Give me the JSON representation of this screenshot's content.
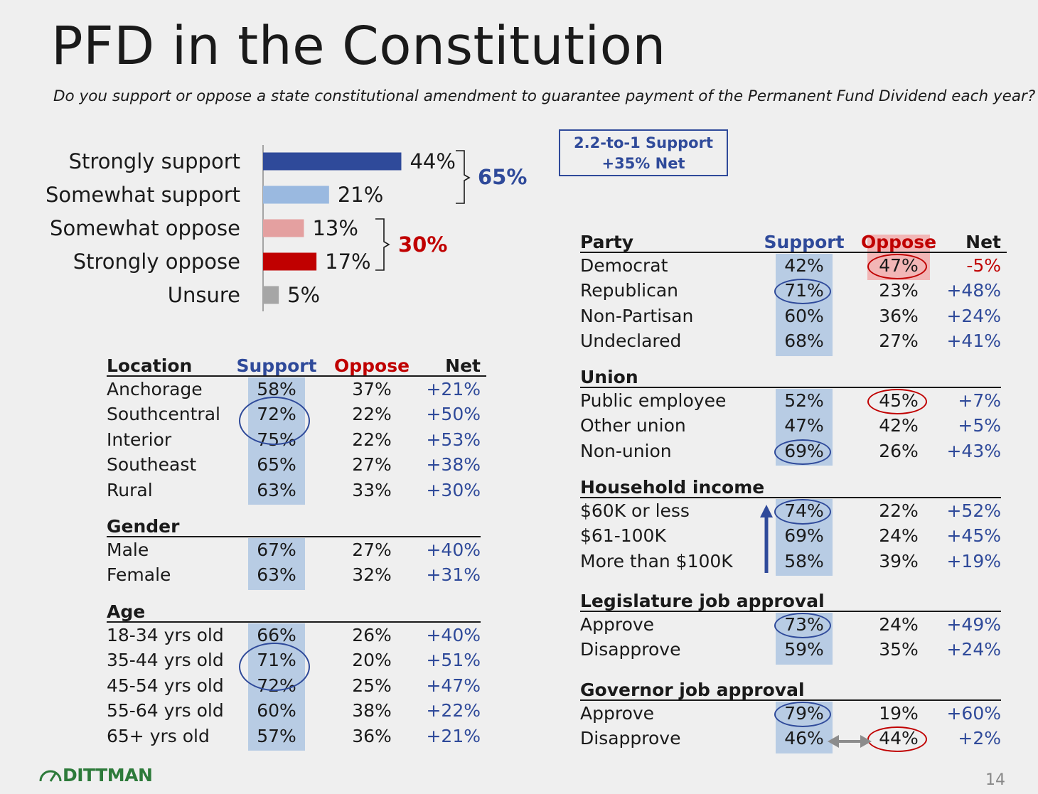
{
  "title": "PFD in the Constitution",
  "subtitle": "Do you support or oppose a state constitutional amendment to guarantee payment of the Permanent Fund Dividend each year?",
  "colors": {
    "strong_support": "#2f4a9a",
    "somewhat_support": "#9ab9e0",
    "somewhat_oppose": "#e4a0a0",
    "strong_oppose": "#c00000",
    "unsure": "#a6a6a6",
    "support_shade": "#b8cce4",
    "oppose_shade": "#f2b6b6"
  },
  "chart_data": {
    "type": "bar",
    "orientation": "horizontal",
    "categories": [
      "Strongly support",
      "Somewhat support",
      "Somewhat oppose",
      "Strongly oppose",
      "Unsure"
    ],
    "values": [
      44,
      21,
      13,
      17,
      5
    ],
    "value_labels": [
      "44%",
      "21%",
      "13%",
      "17%",
      "5%"
    ],
    "xlim": [
      0,
      100
    ],
    "grid": false,
    "support_total": "65%",
    "oppose_total": "30%"
  },
  "summary_box": {
    "line1": "2.2-to-1 Support",
    "line2": "+35% Net"
  },
  "table_headers": {
    "support": "Support",
    "oppose": "Oppose",
    "net": "Net"
  },
  "left_sections": [
    {
      "title": "Location",
      "rows": [
        {
          "label": "Anchorage",
          "support": "58%",
          "oppose": "37%",
          "net": "+21%"
        },
        {
          "label": "Southcentral",
          "support": "72%",
          "oppose": "22%",
          "net": "+50%"
        },
        {
          "label": "Interior",
          "support": "75%",
          "oppose": "22%",
          "net": "+53%"
        },
        {
          "label": "Southeast",
          "support": "65%",
          "oppose": "27%",
          "net": "+38%"
        },
        {
          "label": "Rural",
          "support": "63%",
          "oppose": "33%",
          "net": "+30%"
        }
      ]
    },
    {
      "title": "Gender",
      "rows": [
        {
          "label": "Male",
          "support": "67%",
          "oppose": "27%",
          "net": "+40%"
        },
        {
          "label": "Female",
          "support": "63%",
          "oppose": "32%",
          "net": "+31%"
        }
      ]
    },
    {
      "title": "Age",
      "rows": [
        {
          "label": "18-34 yrs old",
          "support": "66%",
          "oppose": "26%",
          "net": "+40%"
        },
        {
          "label": "35-44 yrs old",
          "support": "71%",
          "oppose": "20%",
          "net": "+51%"
        },
        {
          "label": "45-54 yrs old",
          "support": "72%",
          "oppose": "25%",
          "net": "+47%"
        },
        {
          "label": "55-64 yrs old",
          "support": "60%",
          "oppose": "38%",
          "net": "+22%"
        },
        {
          "label": "65+ yrs old",
          "support": "57%",
          "oppose": "36%",
          "net": "+21%"
        }
      ]
    }
  ],
  "right_sections": [
    {
      "title": "Party",
      "rows": [
        {
          "label": "Democrat",
          "support": "42%",
          "oppose": "47%",
          "net": "-5%"
        },
        {
          "label": "Republican",
          "support": "71%",
          "oppose": "23%",
          "net": "+48%"
        },
        {
          "label": "Non-Partisan",
          "support": "60%",
          "oppose": "36%",
          "net": "+24%"
        },
        {
          "label": "Undeclared",
          "support": "68%",
          "oppose": "27%",
          "net": "+41%"
        }
      ]
    },
    {
      "title": "Union",
      "rows": [
        {
          "label": "Public employee",
          "support": "52%",
          "oppose": "45%",
          "net": "+7%"
        },
        {
          "label": "Other union",
          "support": "47%",
          "oppose": "42%",
          "net": "+5%"
        },
        {
          "label": "Non-union",
          "support": "69%",
          "oppose": "26%",
          "net": "+43%"
        }
      ]
    },
    {
      "title": "Household income",
      "rows": [
        {
          "label": "$60K or less",
          "support": "74%",
          "oppose": "22%",
          "net": "+52%"
        },
        {
          "label": "$61-100K",
          "support": "69%",
          "oppose": "24%",
          "net": "+45%"
        },
        {
          "label": "More than $100K",
          "support": "58%",
          "oppose": "39%",
          "net": "+19%"
        }
      ]
    },
    {
      "title": "Legislature job approval",
      "rows": [
        {
          "label": "Approve",
          "support": "73%",
          "oppose": "24%",
          "net": "+49%"
        },
        {
          "label": "Disapprove",
          "support": "59%",
          "oppose": "35%",
          "net": "+24%"
        }
      ]
    },
    {
      "title": "Governor job approval",
      "rows": [
        {
          "label": "Approve",
          "support": "79%",
          "oppose": "19%",
          "net": "+60%"
        },
        {
          "label": "Disapprove",
          "support": "46%",
          "oppose": "44%",
          "net": "+2%"
        }
      ]
    }
  ],
  "logo": "DITTMAN",
  "logo_icon": "speedometer-icon",
  "page_number": "14"
}
